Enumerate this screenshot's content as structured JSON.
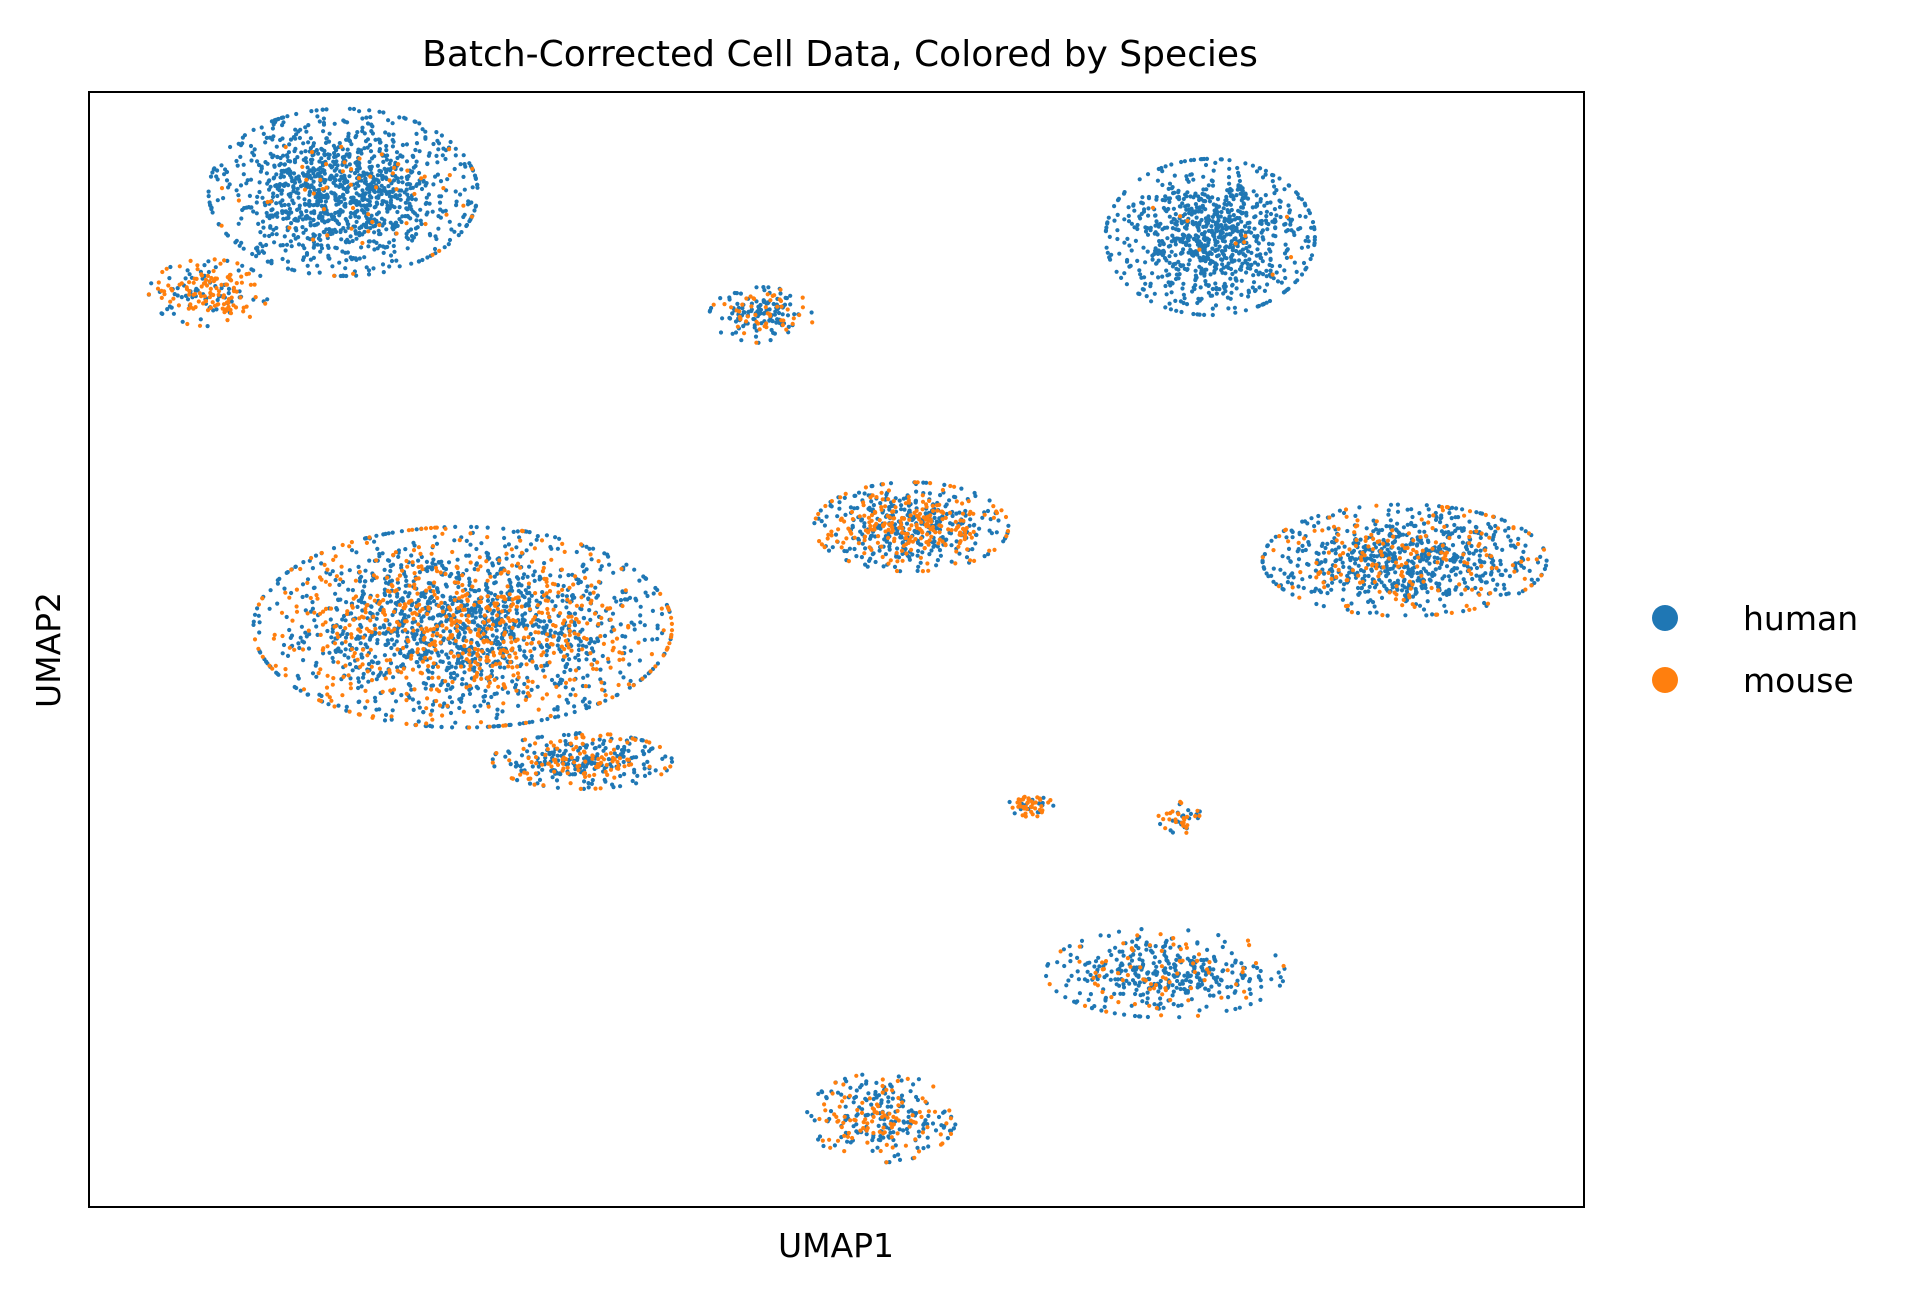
{
  "chart_data": {
    "type": "scatter",
    "title": "Batch-Corrected Cell Data, Colored by Species",
    "xlabel": "UMAP1",
    "ylabel": "UMAP2",
    "xlim": [
      0,
      100
    ],
    "ylim": [
      0,
      100
    ],
    "grid": false,
    "ticks_shown": false,
    "legend_position": "right",
    "series": [
      {
        "name": "human",
        "color": "#1f77b4"
      },
      {
        "name": "mouse",
        "color": "#ff7f0e"
      }
    ],
    "clusters": [
      {
        "x": 17,
        "y": 91,
        "rx": 9,
        "ry": 7.5,
        "human": 1200,
        "mouse": 60
      },
      {
        "x": 8,
        "y": 82,
        "rx": 4,
        "ry": 3,
        "human": 80,
        "mouse": 120
      },
      {
        "x": 25,
        "y": 52,
        "rx": 14,
        "ry": 9,
        "human": 1400,
        "mouse": 700
      },
      {
        "x": 33,
        "y": 40,
        "rx": 6,
        "ry": 2.5,
        "human": 220,
        "mouse": 120
      },
      {
        "x": 45,
        "y": 80,
        "rx": 3.5,
        "ry": 2.5,
        "human": 120,
        "mouse": 50
      },
      {
        "x": 55,
        "y": 61,
        "rx": 6.5,
        "ry": 4,
        "human": 350,
        "mouse": 250
      },
      {
        "x": 75,
        "y": 87,
        "rx": 7,
        "ry": 7,
        "human": 900,
        "mouse": 10
      },
      {
        "x": 88,
        "y": 58,
        "rx": 9.5,
        "ry": 5,
        "human": 700,
        "mouse": 200
      },
      {
        "x": 72,
        "y": 21,
        "rx": 8,
        "ry": 4,
        "human": 350,
        "mouse": 80
      },
      {
        "x": 63,
        "y": 36,
        "rx": 1.5,
        "ry": 1,
        "human": 15,
        "mouse": 40
      },
      {
        "x": 73,
        "y": 35,
        "rx": 1.5,
        "ry": 1.5,
        "human": 20,
        "mouse": 25
      },
      {
        "x": 53,
        "y": 8,
        "rx": 5,
        "ry": 4,
        "human": 180,
        "mouse": 110
      }
    ]
  }
}
